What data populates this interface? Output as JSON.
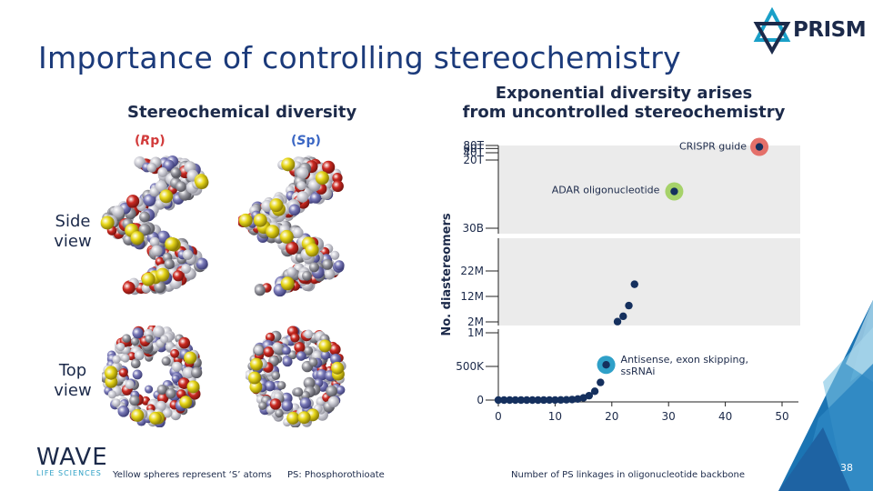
{
  "slide": {
    "title": "Importance of controlling stereochemistry",
    "page_number": "38"
  },
  "brand": {
    "prism_logo_text": "PRISM",
    "wave_logo_text": "WAVE",
    "wave_logo_sub": "LIFE SCIENCES"
  },
  "left_panel": {
    "heading": "Stereochemical diversity",
    "rp_label": {
      "open": "(",
      "letter": "R",
      "rest": "p",
      "close": ")"
    },
    "sp_label": {
      "open": "(",
      "letter": "S",
      "rest": "p",
      "close": ")"
    },
    "side_view_label": [
      "Side",
      "view"
    ],
    "top_view_label": [
      "Top",
      "view"
    ]
  },
  "footnotes": {
    "spheres": "Yellow spheres represent ‘S’ atoms",
    "ps": "PS: Phosphorothioate"
  },
  "colors": {
    "title": "#1b3a7a",
    "points": "#15305e",
    "panel_bg": "#ebebeb",
    "crispr_halo": "#e4706a",
    "adar_halo": "#a6d26a",
    "antisense_halo": "#2fa0c8",
    "rp": "#d23b3b",
    "sp": "#3b67c4"
  },
  "chart_data": {
    "type": "scatter",
    "title": "Exponential diversity arises from uncontrolled stereochemistry",
    "title_lines": [
      "Exponential diversity arises",
      "from uncontrolled stereochemistry"
    ],
    "xlabel": "Number of PS linkages in oligonucleotide backbone",
    "ylabel": "No. diastereomers",
    "xlim": [
      0,
      50
    ],
    "x_ticks": [
      0,
      10,
      20,
      30,
      40,
      50
    ],
    "panels": [
      {
        "name": "bottom",
        "ylim": [
          0,
          1000000
        ],
        "y_ticks": [
          0,
          500000,
          1000000
        ],
        "y_tick_labels": [
          "0",
          "500K",
          "1M"
        ],
        "points": [
          {
            "x": 0,
            "y": 1
          },
          {
            "x": 1,
            "y": 2
          },
          {
            "x": 2,
            "y": 4
          },
          {
            "x": 3,
            "y": 8
          },
          {
            "x": 4,
            "y": 16
          },
          {
            "x": 5,
            "y": 32
          },
          {
            "x": 6,
            "y": 64
          },
          {
            "x": 7,
            "y": 128
          },
          {
            "x": 8,
            "y": 256
          },
          {
            "x": 9,
            "y": 512
          },
          {
            "x": 10,
            "y": 1024
          },
          {
            "x": 11,
            "y": 2048
          },
          {
            "x": 12,
            "y": 4096
          },
          {
            "x": 13,
            "y": 8192
          },
          {
            "x": 14,
            "y": 16384
          },
          {
            "x": 15,
            "y": 32768
          },
          {
            "x": 16,
            "y": 65536
          },
          {
            "x": 17,
            "y": 131072
          },
          {
            "x": 18,
            "y": 262144
          },
          {
            "x": 19,
            "y": 524288
          }
        ]
      },
      {
        "name": "middle",
        "ylim": [
          1000000,
          27000000
        ],
        "y_ticks": [
          2000000,
          12000000,
          22000000
        ],
        "y_tick_labels": [
          "2M",
          "12M",
          "22M"
        ],
        "points": [
          {
            "x": 21,
            "y": 2097152
          },
          {
            "x": 22,
            "y": 4194304
          },
          {
            "x": 23,
            "y": 8388608
          },
          {
            "x": 24,
            "y": 16777216
          }
        ]
      },
      {
        "name": "top",
        "ylim": [
          30000000000,
          80000000000000
        ],
        "y_ticks": [
          30000000000,
          20000000000000,
          40000000000000,
          60000000000000,
          80000000000000
        ],
        "y_tick_labels": [
          "30B",
          "20T",
          "40T",
          "60T",
          "80T"
        ],
        "points": [
          {
            "x": 31,
            "y": 1000000000000
          },
          {
            "x": 46,
            "y": 70000000000000
          }
        ]
      }
    ],
    "highlights": [
      {
        "label": "CRISPR guide",
        "x": 46,
        "panel": "top"
      },
      {
        "label": "ADAR oligonucleotide",
        "x": 31,
        "panel": "top"
      },
      {
        "label": "Antisense, exon skipping,",
        "label2": "ssRNAi",
        "x": 19,
        "panel": "bottom"
      }
    ]
  }
}
